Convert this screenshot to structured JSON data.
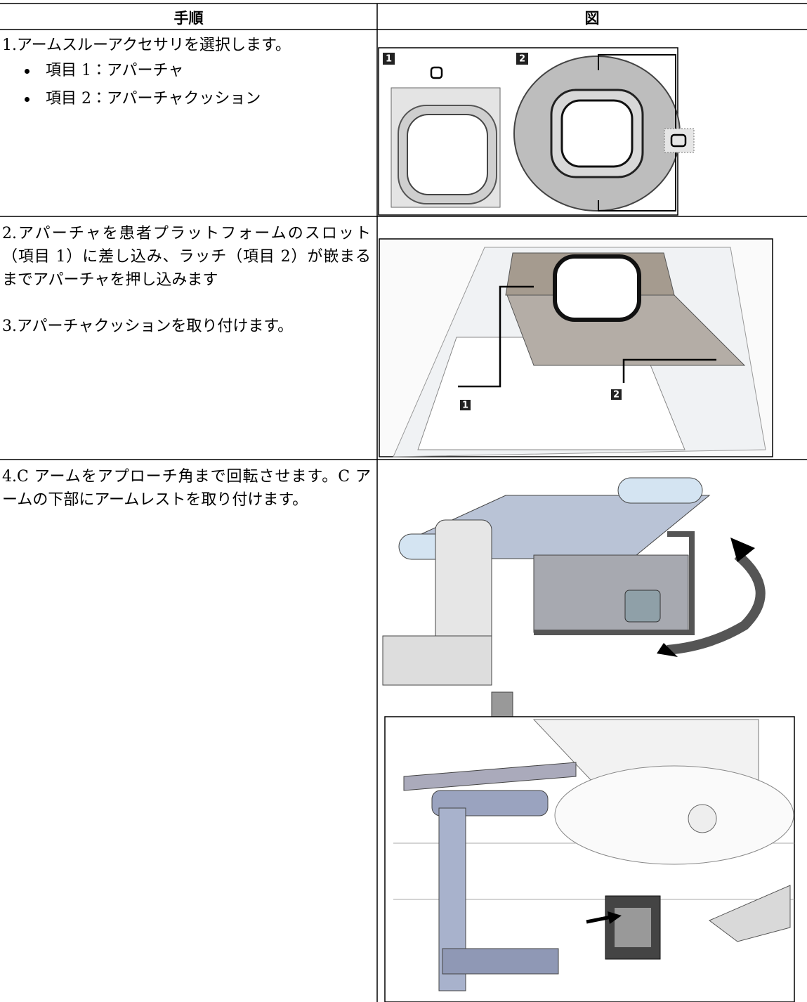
{
  "table": {
    "header": [
      "手順",
      "図"
    ],
    "rows": [
      {
        "paragraphs": [
          "1.アームスルーアクセサリを選択します。"
        ],
        "bullets": [
          "項目 1：アパーチャ",
          "項目 2：アパーチャクッション"
        ],
        "figure_labels": [
          "1",
          "2"
        ]
      },
      {
        "paragraphs": [
          "2.アパーチャを患者プラットフォームのスロット（項目 1）に差し込み、ラッチ（項目 2）が嵌まるまでアパーチャを押し込みます",
          "3.アパーチャクッションを取り付けます。"
        ],
        "figure_labels": [
          "1",
          "2"
        ]
      },
      {
        "paragraphs": [
          "4.C アームをアプローチ角まで回転させます。C アームの下部にアームレストを取り付けます。"
        ]
      }
    ]
  }
}
